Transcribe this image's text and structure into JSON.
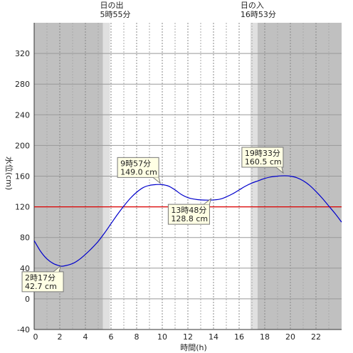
{
  "chart_data": {
    "type": "line",
    "xlabel": "時間(h)",
    "ylabel": "水位(cm)",
    "xlim": [
      0,
      24
    ],
    "ylim": [
      -40,
      360
    ],
    "x_ticks": [
      0,
      2,
      4,
      6,
      8,
      10,
      12,
      14,
      16,
      18,
      20,
      22
    ],
    "y_ticks": [
      -40,
      0,
      40,
      80,
      120,
      160,
      200,
      240,
      280,
      320
    ],
    "grid": true,
    "reference_line": {
      "value": 120,
      "color": "#dd0000"
    },
    "sunrise": {
      "title": "日の出",
      "time": "5時55分",
      "hour": 5.9167
    },
    "sunset": {
      "title": "日の入",
      "time": "16時53分",
      "hour": 16.8833
    },
    "night_color": "#c0c0c0",
    "twilight_color": "#e0e0e0",
    "series": [
      {
        "color": "#0000cc",
        "x": [
          0,
          0.5,
          1,
          1.5,
          2,
          2.28,
          3,
          3.5,
          4,
          4.5,
          5,
          5.5,
          6,
          6.5,
          7,
          7.5,
          8,
          8.5,
          9,
          9.5,
          9.95,
          10.5,
          11,
          11.5,
          12,
          12.5,
          13,
          13.8,
          14.5,
          15,
          15.5,
          16,
          16.5,
          17,
          17.5,
          18,
          18.5,
          19,
          19.55,
          20,
          20.5,
          21,
          21.5,
          22,
          22.5,
          23,
          23.5,
          24
        ],
        "y": [
          76,
          62,
          52,
          46,
          43,
          42.7,
          46,
          51,
          58,
          66,
          75,
          86,
          98,
          110,
          121,
          131,
          139,
          145,
          148,
          149,
          149,
          147,
          142,
          136,
          132,
          130,
          129,
          128.8,
          130,
          133,
          137,
          142,
          147,
          151,
          154,
          157,
          159,
          160,
          160.5,
          160,
          158,
          154,
          148,
          140,
          131,
          121,
          111,
          100
        ]
      }
    ],
    "annotations": [
      {
        "time": "2時17分",
        "value": "42.7 cm",
        "x": 2.28,
        "y": 42.7
      },
      {
        "time": "9時57分",
        "value": "149.0 cm",
        "x": 9.95,
        "y": 149.0
      },
      {
        "time": "13時48分",
        "value": "128.8 cm",
        "x": 13.8,
        "y": 128.8
      },
      {
        "time": "19時33分",
        "value": "160.5 cm",
        "x": 19.55,
        "y": 160.5
      }
    ]
  }
}
